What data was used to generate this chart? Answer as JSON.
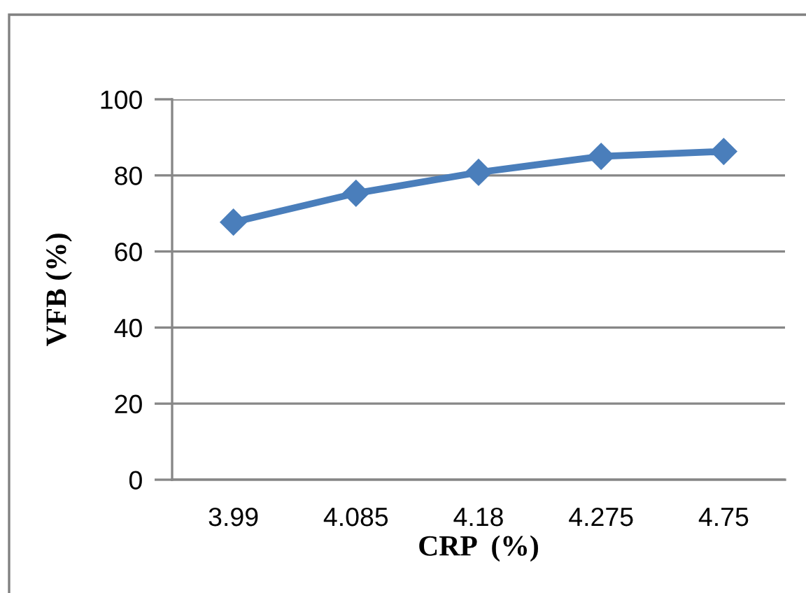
{
  "chart_data": {
    "type": "line",
    "xlabel": "CRP  (%)",
    "ylabel": "VFB (%)",
    "categories": [
      "3.99",
      "4.085",
      "4.18",
      "4.275",
      "4.75"
    ],
    "series": [
      {
        "color": "#4a7ebb",
        "values": [
          67.7,
          75.3,
          80.8,
          85.0,
          86.3
        ]
      }
    ],
    "ylim": [
      0,
      100
    ],
    "yticks": [
      0,
      20,
      40,
      60,
      80,
      100
    ],
    "grid": "y",
    "marker": "diamond",
    "line_style": "solid"
  }
}
